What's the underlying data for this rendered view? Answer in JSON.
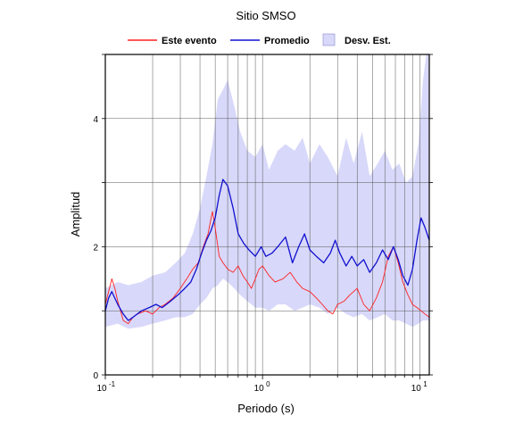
{
  "chart_data": {
    "type": "line",
    "title": "Sitio SMSO",
    "xlabel": "Periodo (s)",
    "ylabel": "Amplitud",
    "x_scale": "log",
    "xlim": [
      0.1,
      11.5
    ],
    "ylim": [
      0,
      5
    ],
    "grid": true,
    "legend_position": "top",
    "x_ticks": [
      {
        "value": 0.1,
        "base": "10",
        "exp": "-1"
      },
      {
        "value": 1,
        "base": "10",
        "exp": "0"
      },
      {
        "value": 10,
        "base": "10",
        "exp": "1"
      }
    ],
    "y_ticks": [
      {
        "value": 0,
        "label": "0"
      },
      {
        "value": 2,
        "label": "2"
      },
      {
        "value": 4,
        "label": "4"
      }
    ],
    "legend": {
      "event": "Este evento",
      "mean": "Promedio",
      "std": "Desv. Est."
    },
    "colors": {
      "event": "#ff2020",
      "mean": "#1010d0",
      "std_fill": "#d8d8fa"
    },
    "series": [
      {
        "name": "Promedio",
        "x": [
          0.1,
          0.105,
          0.11,
          0.12,
          0.13,
          0.14,
          0.15,
          0.17,
          0.19,
          0.21,
          0.23,
          0.26,
          0.29,
          0.32,
          0.35,
          0.38,
          0.41,
          0.44,
          0.47,
          0.5,
          0.53,
          0.56,
          0.6,
          0.65,
          0.7,
          0.76,
          0.82,
          0.9,
          0.98,
          1.05,
          1.15,
          1.25,
          1.4,
          1.55,
          1.7,
          1.85,
          2.0,
          2.2,
          2.45,
          2.7,
          2.9,
          3.1,
          3.4,
          3.7,
          4.0,
          4.4,
          4.8,
          5.3,
          5.8,
          6.3,
          6.8,
          7.3,
          7.8,
          8.4,
          9.0,
          9.6,
          10.2,
          10.8,
          11.5
        ],
        "values": [
          1.0,
          1.2,
          1.3,
          1.1,
          0.95,
          0.85,
          0.9,
          1.0,
          1.05,
          1.1,
          1.05,
          1.15,
          1.25,
          1.35,
          1.45,
          1.65,
          1.9,
          2.1,
          2.25,
          2.45,
          2.8,
          3.05,
          2.95,
          2.6,
          2.2,
          2.05,
          1.95,
          1.85,
          2.0,
          1.85,
          1.9,
          2.0,
          2.15,
          1.75,
          2.0,
          2.2,
          1.95,
          1.85,
          1.75,
          1.9,
          2.1,
          1.9,
          1.7,
          1.85,
          1.7,
          1.8,
          1.6,
          1.75,
          1.95,
          1.8,
          2.0,
          1.8,
          1.55,
          1.4,
          1.65,
          2.1,
          2.45,
          2.3,
          2.1
        ]
      },
      {
        "name": "Este evento",
        "x": [
          0.1,
          0.105,
          0.11,
          0.115,
          0.12,
          0.13,
          0.14,
          0.15,
          0.16,
          0.18,
          0.2,
          0.22,
          0.24,
          0.27,
          0.3,
          0.33,
          0.36,
          0.39,
          0.42,
          0.45,
          0.48,
          0.5,
          0.53,
          0.56,
          0.6,
          0.65,
          0.7,
          0.75,
          0.8,
          0.85,
          0.9,
          0.95,
          1.0,
          1.1,
          1.2,
          1.35,
          1.5,
          1.65,
          1.8,
          2.0,
          2.2,
          2.4,
          2.6,
          2.8,
          3.0,
          3.3,
          3.6,
          4.0,
          4.4,
          4.8,
          5.3,
          5.8,
          6.3,
          6.8,
          7.3,
          7.8,
          8.4,
          9.0,
          9.6,
          10.2,
          10.8,
          11.5
        ],
        "values": [
          1.1,
          1.3,
          1.5,
          1.35,
          1.15,
          0.85,
          0.8,
          0.9,
          0.95,
          1.0,
          0.95,
          1.05,
          1.1,
          1.2,
          1.35,
          1.5,
          1.65,
          1.75,
          2.0,
          2.2,
          2.55,
          2.3,
          1.85,
          1.75,
          1.65,
          1.6,
          1.7,
          1.55,
          1.45,
          1.35,
          1.5,
          1.65,
          1.7,
          1.55,
          1.45,
          1.5,
          1.6,
          1.45,
          1.35,
          1.3,
          1.2,
          1.1,
          1.0,
          0.95,
          1.1,
          1.15,
          1.25,
          1.35,
          1.1,
          1.0,
          1.2,
          1.45,
          1.85,
          2.0,
          1.75,
          1.45,
          1.25,
          1.1,
          1.05,
          1.0,
          0.95,
          0.9
        ]
      },
      {
        "name": "Desv. Est.",
        "x": [
          0.1,
          0.12,
          0.14,
          0.17,
          0.2,
          0.24,
          0.28,
          0.32,
          0.36,
          0.4,
          0.44,
          0.48,
          0.52,
          0.56,
          0.6,
          0.66,
          0.72,
          0.8,
          0.9,
          1.0,
          1.1,
          1.25,
          1.4,
          1.6,
          1.8,
          2.0,
          2.3,
          2.6,
          3.0,
          3.4,
          3.8,
          4.3,
          4.8,
          5.4,
          6.0,
          6.7,
          7.4,
          8.2,
          9.0,
          9.8,
          10.5,
          11.0,
          11.5
        ],
        "upper": [
          1.35,
          1.45,
          1.4,
          1.45,
          1.55,
          1.6,
          1.75,
          1.9,
          2.2,
          2.6,
          3.1,
          3.6,
          4.3,
          4.45,
          4.6,
          4.2,
          3.8,
          3.5,
          3.4,
          3.6,
          3.2,
          3.5,
          3.6,
          3.5,
          3.7,
          3.3,
          3.6,
          3.4,
          3.1,
          3.7,
          3.3,
          3.8,
          3.1,
          3.3,
          3.5,
          3.2,
          3.3,
          3.0,
          3.1,
          3.6,
          4.6,
          5.0,
          5.0
        ],
        "lower": [
          0.75,
          0.8,
          0.72,
          0.75,
          0.8,
          0.85,
          0.9,
          0.9,
          0.95,
          1.1,
          1.2,
          1.35,
          1.4,
          1.5,
          1.45,
          1.35,
          1.25,
          1.15,
          1.05,
          1.05,
          1.0,
          1.1,
          1.1,
          1.0,
          1.05,
          1.1,
          1.05,
          0.95,
          1.05,
          0.95,
          0.9,
          0.95,
          0.85,
          0.9,
          0.95,
          0.85,
          0.85,
          0.8,
          0.75,
          0.8,
          0.85,
          0.85,
          0.85
        ]
      }
    ]
  }
}
